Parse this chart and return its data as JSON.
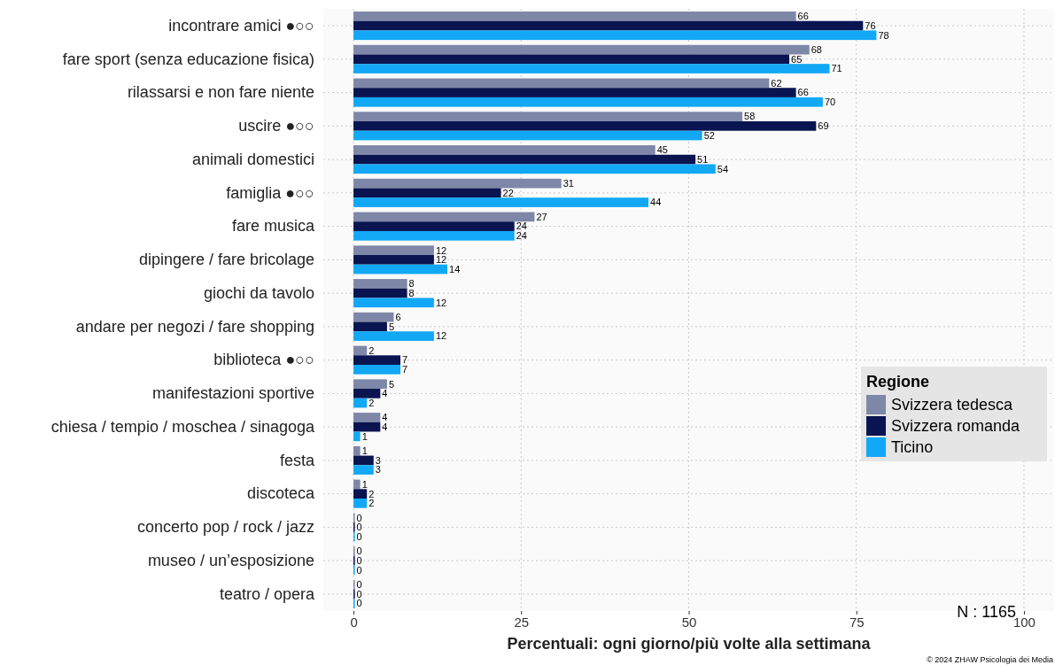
{
  "chart_data": {
    "type": "bar",
    "orientation": "horizontal",
    "xlabel": "Percentuali: ogni giorno/più volte alla settimana",
    "legend_title": "Regione",
    "legend": "right",
    "grid": true,
    "data_labels": true,
    "categories": [
      "incontrare amici ●○○",
      "fare sport (senza educazione  fisica)",
      "rilassarsi e non fare niente",
      "uscire ●○○",
      "animali  domestici",
      "famiglia ●○○",
      "fare musica",
      "dipingere / fare bricolage",
      "giochi da tavolo",
      "andare per negozi / fare shopping",
      "biblioteca ●○○",
      "manifestazioni  sportive",
      "chiesa / tempio / moschea / sinagoga",
      "festa",
      "discoteca",
      "concerto pop / rock / jazz",
      "museo / un’esposizione",
      "teatro / opera"
    ],
    "xlim": [
      -4.5,
      104.5
    ],
    "xticks": [
      0,
      25,
      50,
      75,
      100
    ],
    "series": [
      {
        "name": "Svizzera tedesca",
        "color": "#7f87a8",
        "values": [
          66,
          68,
          62,
          58,
          45,
          31,
          27,
          12,
          8,
          6,
          2,
          5,
          4,
          1,
          1,
          0,
          0,
          0
        ]
      },
      {
        "name": "Svizzera romanda",
        "color": "#0a1450",
        "values": [
          76,
          65,
          66,
          69,
          51,
          22,
          24,
          12,
          8,
          5,
          7,
          4,
          4,
          3,
          2,
          0,
          0,
          0
        ]
      },
      {
        "name": "Ticino",
        "color": "#12a8f5",
        "values": [
          78,
          71,
          70,
          52,
          54,
          44,
          24,
          14,
          12,
          12,
          7,
          2,
          1,
          3,
          2,
          0,
          0,
          0
        ]
      }
    ],
    "annotations": [
      "N : 1165",
      "© 2024 ZHAW Psicologia dei Media"
    ]
  }
}
